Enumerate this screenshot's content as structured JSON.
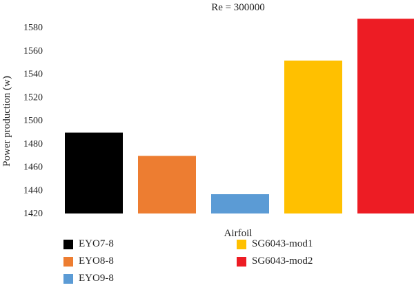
{
  "chart_data": {
    "type": "bar",
    "title": "Re = 300000",
    "xlabel": "Airfoil",
    "ylabel": "Power production (w)",
    "ylim": [
      1420,
      1590
    ],
    "yticks": [
      1420,
      1440,
      1460,
      1480,
      1500,
      1520,
      1540,
      1560,
      1580
    ],
    "grid": false,
    "legend_position": "bottom",
    "series": [
      {
        "name": "EYO7-8",
        "value": 1489,
        "color": "#000000"
      },
      {
        "name": "EYO8-8",
        "value": 1469,
        "color": "#ED7D31"
      },
      {
        "name": "EYO9-8",
        "value": 1436,
        "color": "#5B9BD5"
      },
      {
        "name": "SG6043-mod1",
        "value": 1551,
        "color": "#FFC000"
      },
      {
        "name": "SG6043-mod2",
        "value": 1587,
        "color": "#ED1C24"
      }
    ]
  }
}
